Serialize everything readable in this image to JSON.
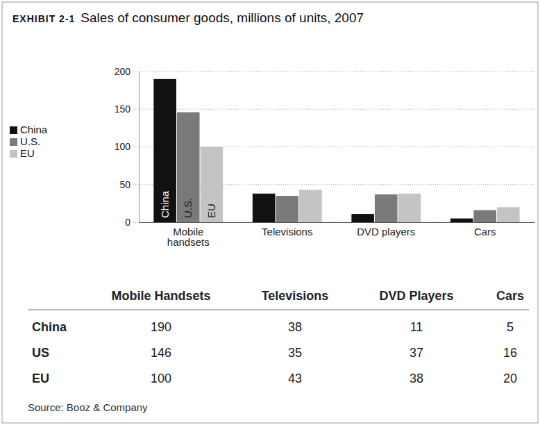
{
  "exhibit": "EXHIBIT 2-1",
  "chart_data": {
    "type": "bar",
    "title": "Sales of consumer goods, millions of units, 2007",
    "categories": [
      "Mobile handsets",
      "Televisions",
      "DVD players",
      "Cars"
    ],
    "series": [
      {
        "name": "China",
        "color": "#111111",
        "values": [
          190,
          38,
          11,
          5
        ]
      },
      {
        "name": "U.S.",
        "color": "#7a7a7a",
        "values": [
          146,
          35,
          37,
          16
        ]
      },
      {
        "name": "EU",
        "color": "#c4c4c4",
        "values": [
          100,
          43,
          38,
          20
        ]
      }
    ],
    "ylim": [
      0,
      200
    ],
    "yticks": [
      0,
      50,
      100,
      150,
      200
    ],
    "grid": true,
    "legend": "left"
  },
  "table": {
    "columns": [
      "Mobile Handsets",
      "Televisions",
      "DVD Players",
      "Cars"
    ],
    "row_labels": [
      "China",
      "US",
      "EU"
    ]
  },
  "source": "Source: Booz & Company"
}
